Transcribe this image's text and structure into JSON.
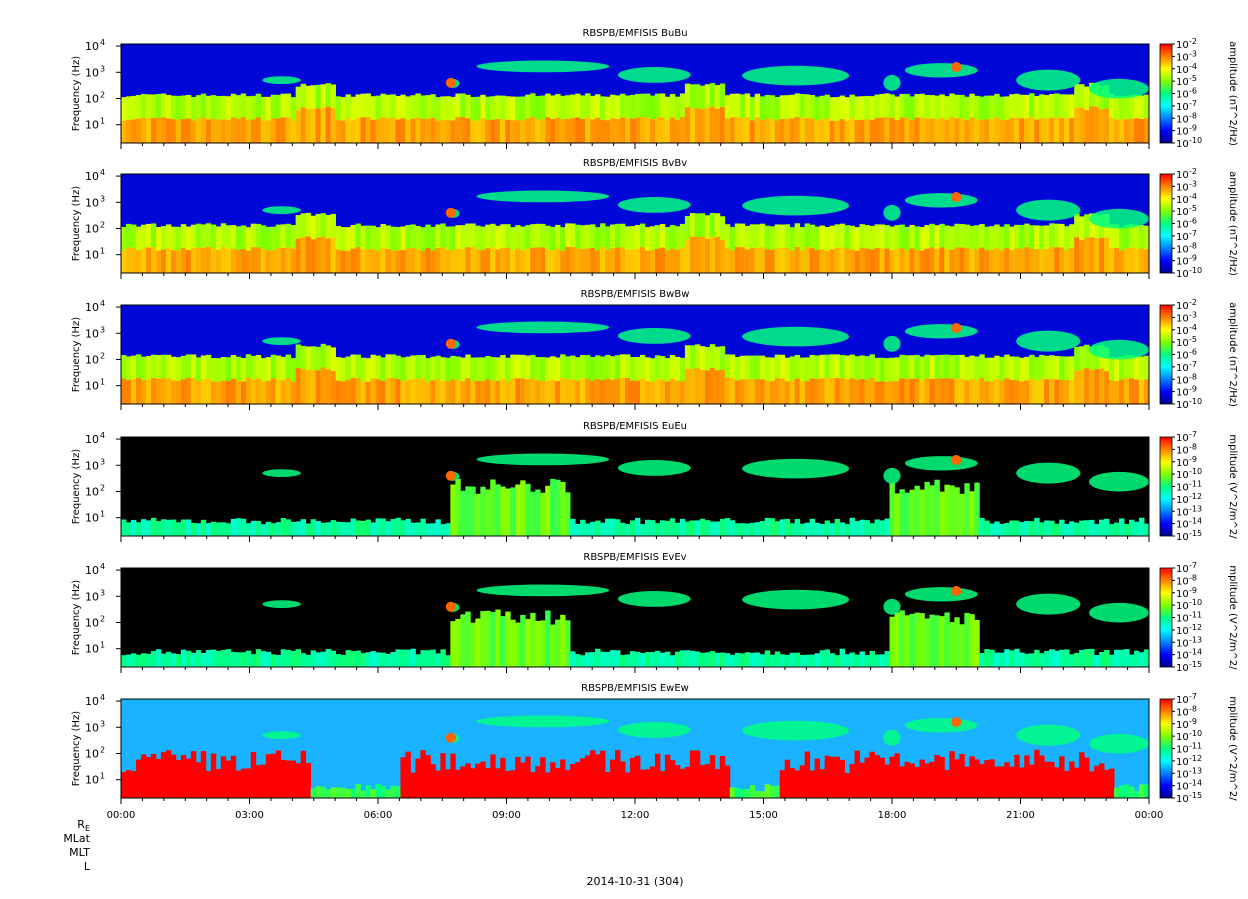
{
  "chart_data": [
    {
      "type": "heatmap",
      "title": "RBSPB/EMFISIS  BuBu",
      "ylabel": "Frequency (Hz)",
      "yticks": [
        "10",
        "10",
        "10",
        "10"
      ],
      "yexps": [
        "1",
        "2",
        "3",
        "4"
      ],
      "ylog": true,
      "ylim": [
        2,
        12000
      ],
      "colorbar_label": "amplitude (nT^2/Hz)",
      "colorbar_ticks": [
        "10",
        "10",
        "10",
        "10",
        "10",
        "10",
        "10",
        "10",
        "10"
      ],
      "colorbar_exps": [
        "-2",
        "-3",
        "-4",
        "-5",
        "-6",
        "-7",
        "-8",
        "-9",
        "-10"
      ],
      "colorbar_range": [
        -10,
        -2
      ],
      "component": "B",
      "floor": "blue"
    },
    {
      "type": "heatmap",
      "title": "RBSPB/EMFISIS  BvBv",
      "ylabel": "Frequency (Hz)",
      "yticks": [
        "10",
        "10",
        "10",
        "10"
      ],
      "yexps": [
        "1",
        "2",
        "3",
        "4"
      ],
      "ylog": true,
      "ylim": [
        2,
        12000
      ],
      "colorbar_label": "amplitude (nT^2/Hz)",
      "colorbar_ticks": [
        "10",
        "10",
        "10",
        "10",
        "10",
        "10",
        "10",
        "10",
        "10"
      ],
      "colorbar_exps": [
        "-2",
        "-3",
        "-4",
        "-5",
        "-6",
        "-7",
        "-8",
        "-9",
        "-10"
      ],
      "colorbar_range": [
        -10,
        -2
      ],
      "component": "B",
      "floor": "blue"
    },
    {
      "type": "heatmap",
      "title": "RBSPB/EMFISIS  BwBw",
      "ylabel": "Frequency (Hz)",
      "yticks": [
        "10",
        "10",
        "10",
        "10"
      ],
      "yexps": [
        "1",
        "2",
        "3",
        "4"
      ],
      "ylog": true,
      "ylim": [
        2,
        12000
      ],
      "colorbar_label": "amplitude (nT^2/Hz)",
      "colorbar_ticks": [
        "10",
        "10",
        "10",
        "10",
        "10",
        "10",
        "10",
        "10",
        "10"
      ],
      "colorbar_exps": [
        "-2",
        "-3",
        "-4",
        "-5",
        "-6",
        "-7",
        "-8",
        "-9",
        "-10"
      ],
      "colorbar_range": [
        -10,
        -2
      ],
      "component": "B",
      "floor": "blue"
    },
    {
      "type": "heatmap",
      "title": "RBSPB/EMFISIS  EuEu",
      "ylabel": "Frequency (Hz)",
      "yticks": [
        "10",
        "10",
        "10",
        "10"
      ],
      "yexps": [
        "1",
        "2",
        "3",
        "4"
      ],
      "ylog": true,
      "ylim": [
        2,
        12000
      ],
      "colorbar_label": "mplitude (V^2/m^2/",
      "colorbar_ticks": [
        "10",
        "10",
        "10",
        "10",
        "10",
        "10",
        "10",
        "10",
        "10"
      ],
      "colorbar_exps": [
        "-7",
        "-8",
        "-9",
        "-10",
        "-11",
        "-12",
        "-13",
        "-14",
        "-15"
      ],
      "colorbar_range": [
        -15,
        -7
      ],
      "component": "E",
      "floor": "black"
    },
    {
      "type": "heatmap",
      "title": "RBSPB/EMFISIS  EvEv",
      "ylabel": "Frequency (Hz)",
      "yticks": [
        "10",
        "10",
        "10",
        "10"
      ],
      "yexps": [
        "1",
        "2",
        "3",
        "4"
      ],
      "ylog": true,
      "ylim": [
        2,
        12000
      ],
      "colorbar_label": "mplitude (V^2/m^2/",
      "colorbar_ticks": [
        "10",
        "10",
        "10",
        "10",
        "10",
        "10",
        "10",
        "10",
        "10"
      ],
      "colorbar_exps": [
        "-7",
        "-8",
        "-9",
        "-10",
        "-11",
        "-12",
        "-13",
        "-14",
        "-15"
      ],
      "colorbar_range": [
        -15,
        -7
      ],
      "component": "E",
      "floor": "black"
    },
    {
      "type": "heatmap",
      "title": "RBSPB/EMFISIS  EwEw",
      "ylabel": "Frequency (Hz)",
      "yticks": [
        "10",
        "10",
        "10",
        "10"
      ],
      "yexps": [
        "1",
        "2",
        "3",
        "4"
      ],
      "ylog": true,
      "ylim": [
        2,
        12000
      ],
      "colorbar_label": "mplitude (V^2/m^2/",
      "colorbar_ticks": [
        "10",
        "10",
        "10",
        "10",
        "10",
        "10",
        "10",
        "10",
        "10"
      ],
      "colorbar_exps": [
        "-7",
        "-8",
        "-9",
        "-10",
        "-11",
        "-12",
        "-13",
        "-14",
        "-15"
      ],
      "colorbar_range": [
        -15,
        -7
      ],
      "component": "Ew",
      "floor": "cyan"
    }
  ],
  "x_axis": {
    "ticks": [
      "00:00",
      "03:00",
      "06:00",
      "09:00",
      "12:00",
      "15:00",
      "18:00",
      "21:00",
      "00:00"
    ],
    "range_hours": [
      0,
      24
    ]
  },
  "footer": {
    "rows": [
      "R",
      "MLat",
      "MLT",
      "L"
    ],
    "re_subscript": "E",
    "date": "2014-10-31 (304)"
  },
  "colors": {
    "colormap": [
      "#00008f",
      "#0000ff",
      "#0080ff",
      "#00ffff",
      "#00ff80",
      "#80ff00",
      "#ffff00",
      "#ff8000",
      "#ff0000"
    ]
  }
}
